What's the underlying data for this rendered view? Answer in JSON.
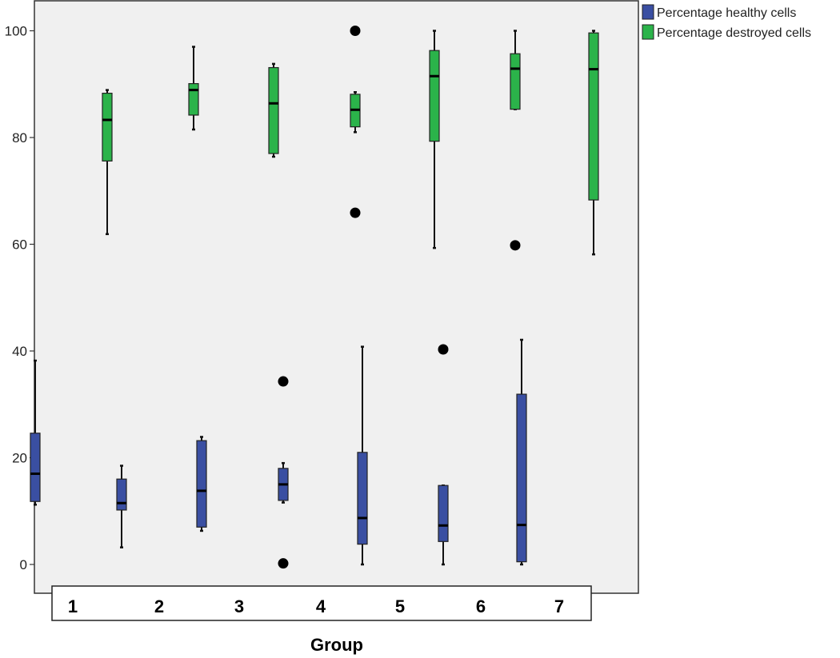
{
  "chart_data": {
    "type": "boxplot",
    "xlabel": "Group",
    "ylabel": "",
    "ylim": [
      -5,
      105
    ],
    "yticks": [
      0,
      20,
      40,
      60,
      80,
      100
    ],
    "categories": [
      "1",
      "2",
      "3",
      "4",
      "5",
      "6",
      "7"
    ],
    "legend_position": "top-right",
    "grid": false,
    "series": [
      {
        "name": "Percentage healthy cells",
        "color": "#3a4fa2",
        "boxes": [
          {
            "group": "1",
            "min": 11.2,
            "q1": 11.8,
            "median": 17.0,
            "q3": 24.6,
            "max": 38.2,
            "outliers": []
          },
          {
            "group": "2",
            "min": 3.2,
            "q1": 10.2,
            "median": 11.5,
            "q3": 16.0,
            "max": 18.5,
            "outliers": []
          },
          {
            "group": "3",
            "min": 6.3,
            "q1": 7.0,
            "median": 13.8,
            "q3": 23.2,
            "max": 23.9,
            "outliers": []
          },
          {
            "group": "4",
            "min": 11.6,
            "q1": 12.0,
            "median": 15.0,
            "q3": 18.0,
            "max": 19.0,
            "outliers": [
              34.3,
              0.2
            ]
          },
          {
            "group": "5",
            "min": 0.0,
            "q1": 3.8,
            "median": 8.7,
            "q3": 21.0,
            "max": 40.8,
            "outliers": []
          },
          {
            "group": "6",
            "min": 0.0,
            "q1": 4.3,
            "median": 7.3,
            "q3": 14.8,
            "max": 14.8,
            "outliers": [
              40.3
            ]
          },
          {
            "group": "7",
            "min": 0.0,
            "q1": 0.5,
            "median": 7.4,
            "q3": 31.9,
            "max": 42.1,
            "outliers": []
          }
        ]
      },
      {
        "name": "Percentage destroyed cells",
        "color": "#2bb34a",
        "boxes": [
          {
            "group": "1",
            "min": 61.9,
            "q1": 75.6,
            "median": 83.3,
            "q3": 88.3,
            "max": 88.9,
            "outliers": []
          },
          {
            "group": "2",
            "min": 81.5,
            "q1": 84.2,
            "median": 88.9,
            "q3": 90.1,
            "max": 97.0,
            "outliers": []
          },
          {
            "group": "3",
            "min": 76.4,
            "q1": 77.0,
            "median": 86.4,
            "q3": 93.1,
            "max": 93.8,
            "outliers": []
          },
          {
            "group": "4",
            "min": 81.0,
            "q1": 82.0,
            "median": 85.2,
            "q3": 88.1,
            "max": 88.5,
            "outliers": [
              100.0,
              65.9
            ]
          },
          {
            "group": "5",
            "min": 59.3,
            "q1": 79.3,
            "median": 91.5,
            "q3": 96.3,
            "max": 100.0,
            "outliers": []
          },
          {
            "group": "6",
            "min": 85.3,
            "q1": 85.3,
            "median": 92.9,
            "q3": 95.7,
            "max": 100.0,
            "outliers": [
              59.8
            ]
          },
          {
            "group": "7",
            "min": 58.1,
            "q1": 68.3,
            "median": 92.8,
            "q3": 99.6,
            "max": 100.0,
            "outliers": []
          }
        ]
      }
    ]
  }
}
